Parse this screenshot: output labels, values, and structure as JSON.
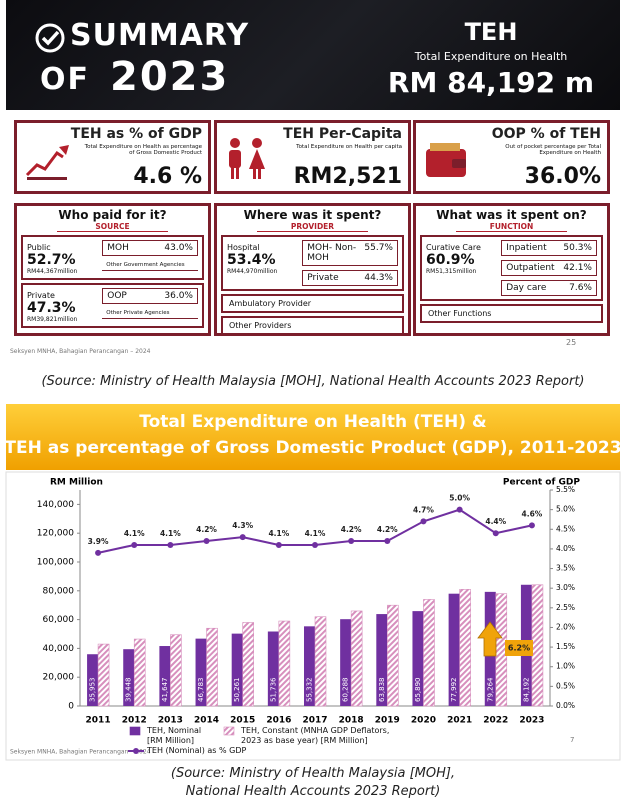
{
  "summary": {
    "header": {
      "title_summary": "SUMMARY",
      "title_of": "OF",
      "year": "2023",
      "teh": "TEH",
      "teh_full": "Total Expenditure on Health",
      "teh_amount": "RM 84,192 m"
    },
    "cards": [
      {
        "title": "TEH as % of GDP",
        "note": "Total Expenditure on Health as percentage of Gross Domestic Product",
        "value": "4.6 %"
      },
      {
        "title": "TEH Per-Capita",
        "note": "Total Expenditure on Health per capita",
        "value": "RM2,521"
      },
      {
        "title": "OOP % of TEH",
        "note": "Out of pocket percentage per Total Expenditure on Health",
        "value": "36.0%"
      }
    ],
    "columns": [
      {
        "title": "Who paid for it?",
        "subtitle": "SOURCE",
        "groups": [
          {
            "label": "Public",
            "pct": "52.7%",
            "amount": "RM44,367million",
            "items": [
              {
                "label": "MOH",
                "value": "43.0%"
              },
              {
                "label": "Other Government Agencies"
              }
            ]
          },
          {
            "label": "Private",
            "pct": "47.3%",
            "amount": "RM39,821million",
            "items": [
              {
                "label": "OOP",
                "value": "36.0%"
              },
              {
                "label": "Other Private Agencies"
              }
            ]
          }
        ],
        "rows": []
      },
      {
        "title": "Where was it spent?",
        "subtitle": "PROVIDER",
        "groups": [
          {
            "label": "Hospital",
            "pct": "53.4%",
            "amount": "RM44,970million",
            "items": [
              {
                "label": "MOH- Non-MOH",
                "value": "55.7%"
              },
              {
                "label": "Private",
                "value": "44.3%"
              }
            ]
          }
        ],
        "rows": [
          "Ambulatory Provider",
          "Other Providers"
        ]
      },
      {
        "title": "What was it spent on?",
        "subtitle": "FUNCTION",
        "groups": [
          {
            "label": "Curative Care",
            "pct": "60.9%",
            "amount": "RM51,315million",
            "items": [
              {
                "label": "Inpatient",
                "value": "50.3%"
              },
              {
                "label": "Outpatient",
                "value": "42.1%"
              },
              {
                "label": "Day care",
                "value": "7.6%"
              }
            ]
          }
        ],
        "rows": [
          "Other Functions"
        ]
      }
    ],
    "footer": "Seksyen MNHA, Bahagian Perancangan – 2024",
    "page_number": "25"
  },
  "caption_top": "(Source: Ministry of Health Malaysia [MOH], National Health Accounts 2023 Report)",
  "chart_data": {
    "type": "bar",
    "title_lines": [
      "Total Expenditure on Health (TEH) &",
      "TEH as percentage of Gross Domestic Product (GDP), 2011-2023"
    ],
    "y_label": "RM Million",
    "y2_label": "Percent of GDP",
    "categories": [
      "2011",
      "2012",
      "2013",
      "2014",
      "2015",
      "2016",
      "2017",
      "2018",
      "2019",
      "2020",
      "2021",
      "2022",
      "2023"
    ],
    "series": [
      {
        "name": "TEH, Nominal [RM Million]",
        "color": "#7030a0",
        "values": [
          35953,
          39448,
          41647,
          46783,
          50261,
          51736,
          55332,
          60288,
          63838,
          65890,
          77992,
          79264,
          84192
        ],
        "value_labels": [
          "35,953",
          "39,448",
          "41,647",
          "46,783",
          "50,261",
          "51,736",
          "55,332",
          "60,288",
          "63,838",
          "65,890",
          "77,992",
          "79,264",
          "84,192"
        ]
      },
      {
        "name": "TEH, Constant (MNHA GDP Deflators, 2023 as base year) [RM Million]",
        "color": "#d78fbd",
        "hatched": true,
        "values": [
          43000,
          46500,
          49500,
          54000,
          58000,
          59000,
          62000,
          66000,
          70000,
          74000,
          81000,
          78000,
          84192
        ]
      },
      {
        "name": "TEH (Nominal) as % GDP",
        "color": "#7030a0",
        "type": "line",
        "axis": "y2",
        "values": [
          3.9,
          4.1,
          4.1,
          4.2,
          4.3,
          4.1,
          4.1,
          4.2,
          4.2,
          4.7,
          5.0,
          4.4,
          4.6
        ],
        "value_labels": [
          "3.9%",
          "4.1%",
          "4.1%",
          "4.2%",
          "4.3%",
          "4.1%",
          "4.1%",
          "4.2%",
          "4.2%",
          "4.7%",
          "5.0%",
          "4.4%",
          "4.6%"
        ]
      }
    ],
    "ylim": [
      0,
      150000
    ],
    "yticks": [
      0,
      {
        "value": 20000,
        "label": "20,000"
      },
      {
        "value": 40000,
        "label": "40,000"
      },
      {
        "value": 60000,
        "label": "60,000"
      },
      {
        "value": 80000,
        "label": "80,000"
      },
      {
        "value": 100000,
        "label": "100,000"
      },
      {
        "value": 120000,
        "label": "120,000"
      },
      {
        "value": 140000,
        "label": "140,000"
      }
    ],
    "y2lim": [
      0,
      5.5
    ],
    "y2ticks": [
      {
        "value": 0,
        "label": "0.0%"
      },
      {
        "value": 0.5,
        "label": "0.5%"
      },
      {
        "value": 1,
        "label": "1.0%"
      },
      {
        "value": 1.5,
        "label": "1.5%"
      },
      {
        "value": 2,
        "label": "2.0%"
      },
      {
        "value": 2.5,
        "label": "2.5%"
      },
      {
        "value": 3,
        "label": "3.0%"
      },
      {
        "value": 3.5,
        "label": "3.5%"
      },
      {
        "value": 4,
        "label": "4.0%"
      },
      {
        "value": 4.5,
        "label": "4.5%"
      },
      {
        "value": 5,
        "label": "5.0%"
      },
      {
        "value": 5.5,
        "label": "5.5%"
      }
    ],
    "grid": false,
    "annotation": "6.2%",
    "footer": "Seksyen MNHA, Bahagian Perancangan – 2024",
    "page_number": "7"
  },
  "caption_bottom": [
    "(Source: Ministry of Health Malaysia [MOH],",
    "National Health Accounts 2023 Report)"
  ]
}
